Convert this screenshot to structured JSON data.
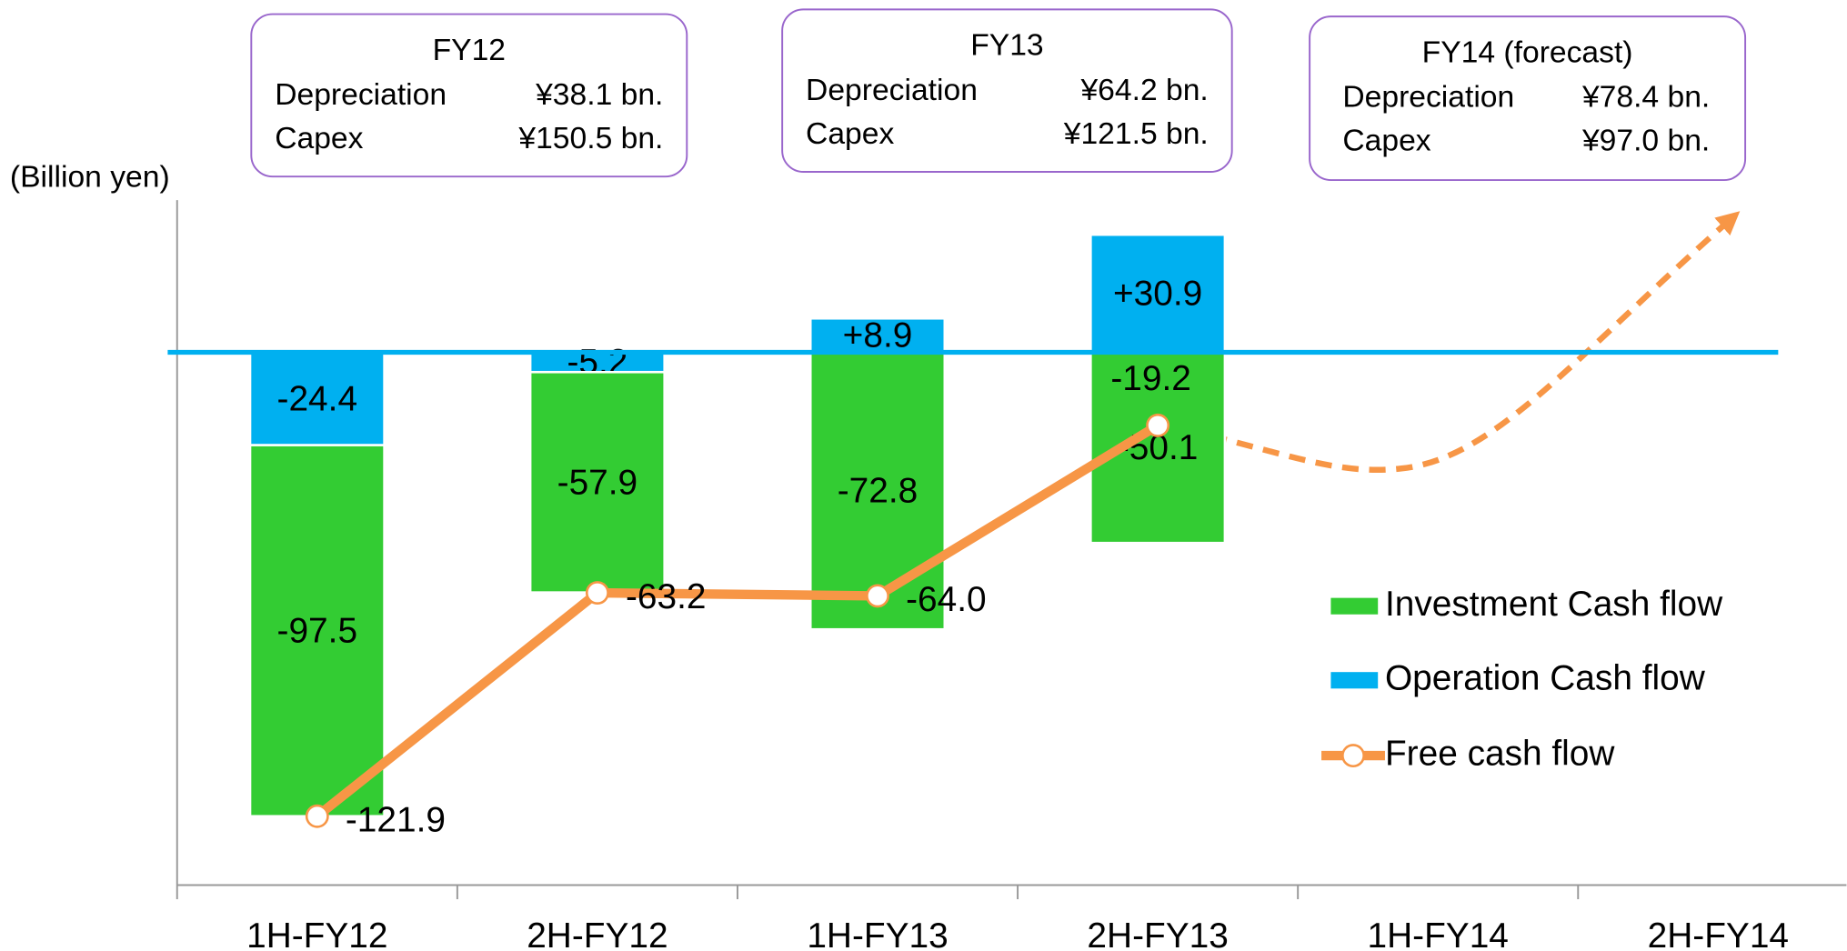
{
  "chart_data": {
    "type": "bar",
    "y_axis_label": "(Billion yen)",
    "categories": [
      "1H-FY12",
      "2H-FY12",
      "1H-FY13",
      "2H-FY13",
      "1H-FY14",
      "2H-FY14"
    ],
    "ylim": [
      -140,
      40
    ],
    "yticks": [],
    "stacked": true,
    "series": [
      {
        "name": "Investment Cash flow",
        "color": "#33cc33",
        "kind": "bar",
        "values": [
          -97.5,
          -57.9,
          -72.8,
          -50.1,
          null,
          null
        ],
        "value_labels": [
          "-97.5",
          "-57.9",
          "-72.8",
          "-50.1",
          null,
          null
        ]
      },
      {
        "name": "Operation Cash flow",
        "color": "#00b0f0",
        "kind": "bar",
        "values": [
          -24.4,
          -5.2,
          8.9,
          30.9,
          null,
          null
        ],
        "value_labels": [
          "-24.4",
          "-5.2",
          "+8.9",
          "+30.9",
          null,
          null
        ]
      },
      {
        "name": "Free cash flow",
        "color": "#f79646",
        "kind": "line",
        "values": [
          -121.9,
          -63.2,
          -64.0,
          -19.2,
          null,
          null
        ],
        "value_labels": [
          "-121.9",
          "-63.2",
          "-64.0",
          "-19.2",
          null,
          null
        ]
      }
    ],
    "annotations": [
      {
        "title": "FY12",
        "rows": [
          [
            "Depreciation",
            "¥38.1 bn."
          ],
          [
            "Capex",
            "¥150.5 bn."
          ]
        ]
      },
      {
        "title": "FY13",
        "rows": [
          [
            "Depreciation",
            "¥64.2 bn."
          ],
          [
            "Capex",
            "¥121.5 bn."
          ]
        ]
      },
      {
        "title": "FY14 (forecast)",
        "rows": [
          [
            "Depreciation",
            "¥78.4 bn."
          ],
          [
            "Capex",
            "¥97.0 bn."
          ]
        ]
      }
    ]
  }
}
